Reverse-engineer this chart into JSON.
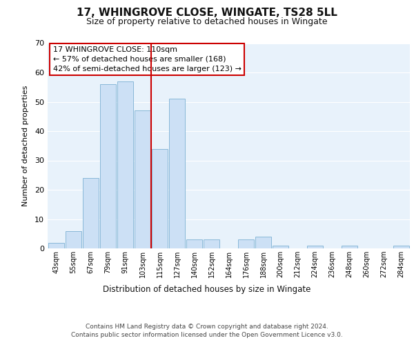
{
  "title": "17, WHINGROVE CLOSE, WINGATE, TS28 5LL",
  "subtitle": "Size of property relative to detached houses in Wingate",
  "xlabel": "Distribution of detached houses by size in Wingate",
  "ylabel": "Number of detached properties",
  "bar_color": "#cce0f5",
  "bar_edge_color": "#88b8d8",
  "background_color": "#ffffff",
  "plot_bg_color": "#e8f2fb",
  "grid_color": "#ffffff",
  "annotation_box_color": "#ffffff",
  "annotation_box_edge": "#cc0000",
  "vline_color": "#cc0000",
  "footer_line1": "Contains HM Land Registry data © Crown copyright and database right 2024.",
  "footer_line2": "Contains public sector information licensed under the Open Government Licence v3.0.",
  "annotation_title": "17 WHINGROVE CLOSE: 110sqm",
  "annotation_line1": "← 57% of detached houses are smaller (168)",
  "annotation_line2": "42% of semi-detached houses are larger (123) →",
  "categories": [
    "43sqm",
    "55sqm",
    "67sqm",
    "79sqm",
    "91sqm",
    "103sqm",
    "115sqm",
    "127sqm",
    "140sqm",
    "152sqm",
    "164sqm",
    "176sqm",
    "188sqm",
    "200sqm",
    "212sqm",
    "224sqm",
    "236sqm",
    "248sqm",
    "260sqm",
    "272sqm",
    "284sqm"
  ],
  "values": [
    2,
    6,
    24,
    56,
    57,
    47,
    34,
    51,
    3,
    3,
    0,
    3,
    4,
    1,
    0,
    1,
    0,
    1,
    0,
    0,
    1
  ],
  "vline_x_index": 5.5,
  "ylim": [
    0,
    70
  ],
  "yticks": [
    0,
    10,
    20,
    30,
    40,
    50,
    60,
    70
  ]
}
